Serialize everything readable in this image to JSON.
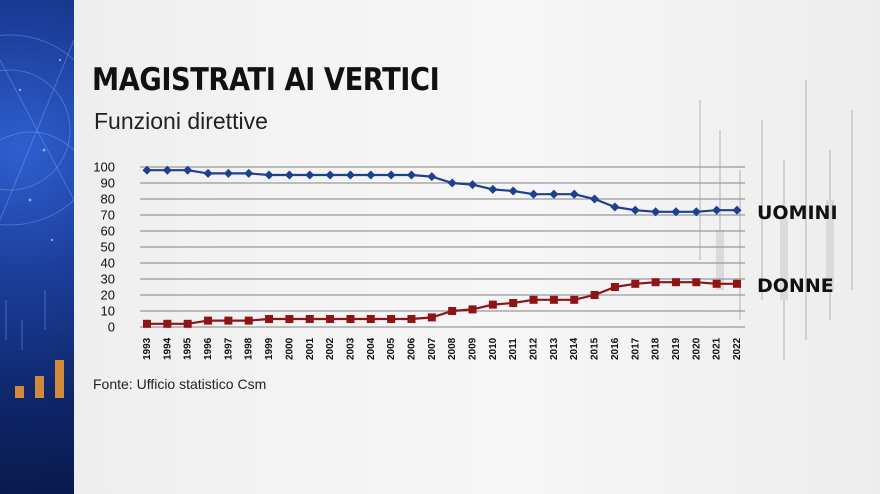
{
  "title": "MAGISTRATI AI VERTICI",
  "subtitle": "Funzioni direttive",
  "source": "Fonte: Ufficio statistico Csm",
  "colors": {
    "uomini": "#1f3f8f",
    "donne": "#8e1416",
    "panel": "#12307a"
  },
  "chart_data": {
    "type": "line",
    "categories": [
      "1993",
      "1994",
      "1995",
      "1996",
      "1997",
      "1998",
      "1999",
      "2000",
      "2001",
      "2002",
      "2003",
      "2004",
      "2005",
      "2006",
      "2007",
      "2008",
      "2009",
      "2010",
      "2011",
      "2012",
      "2013",
      "2014",
      "2015",
      "2016",
      "2017",
      "2018",
      "2019",
      "2020",
      "2021",
      "2022"
    ],
    "series": [
      {
        "name": "UOMINI",
        "values": [
          98,
          98,
          98,
          96,
          96,
          96,
          95,
          95,
          95,
          95,
          95,
          95,
          95,
          95,
          94,
          90,
          89,
          86,
          85,
          83,
          83,
          83,
          80,
          75,
          73,
          72,
          72,
          72,
          73,
          73
        ]
      },
      {
        "name": "DONNE",
        "values": [
          2,
          2,
          2,
          4,
          4,
          4,
          5,
          5,
          5,
          5,
          5,
          5,
          5,
          5,
          6,
          10,
          11,
          14,
          15,
          17,
          17,
          17,
          20,
          25,
          27,
          28,
          28,
          28,
          27,
          27
        ]
      }
    ],
    "y_ticks": [
      0,
      10,
      20,
      30,
      40,
      50,
      60,
      70,
      80,
      90,
      100
    ],
    "ylim": [
      0,
      100
    ],
    "grid": true
  }
}
